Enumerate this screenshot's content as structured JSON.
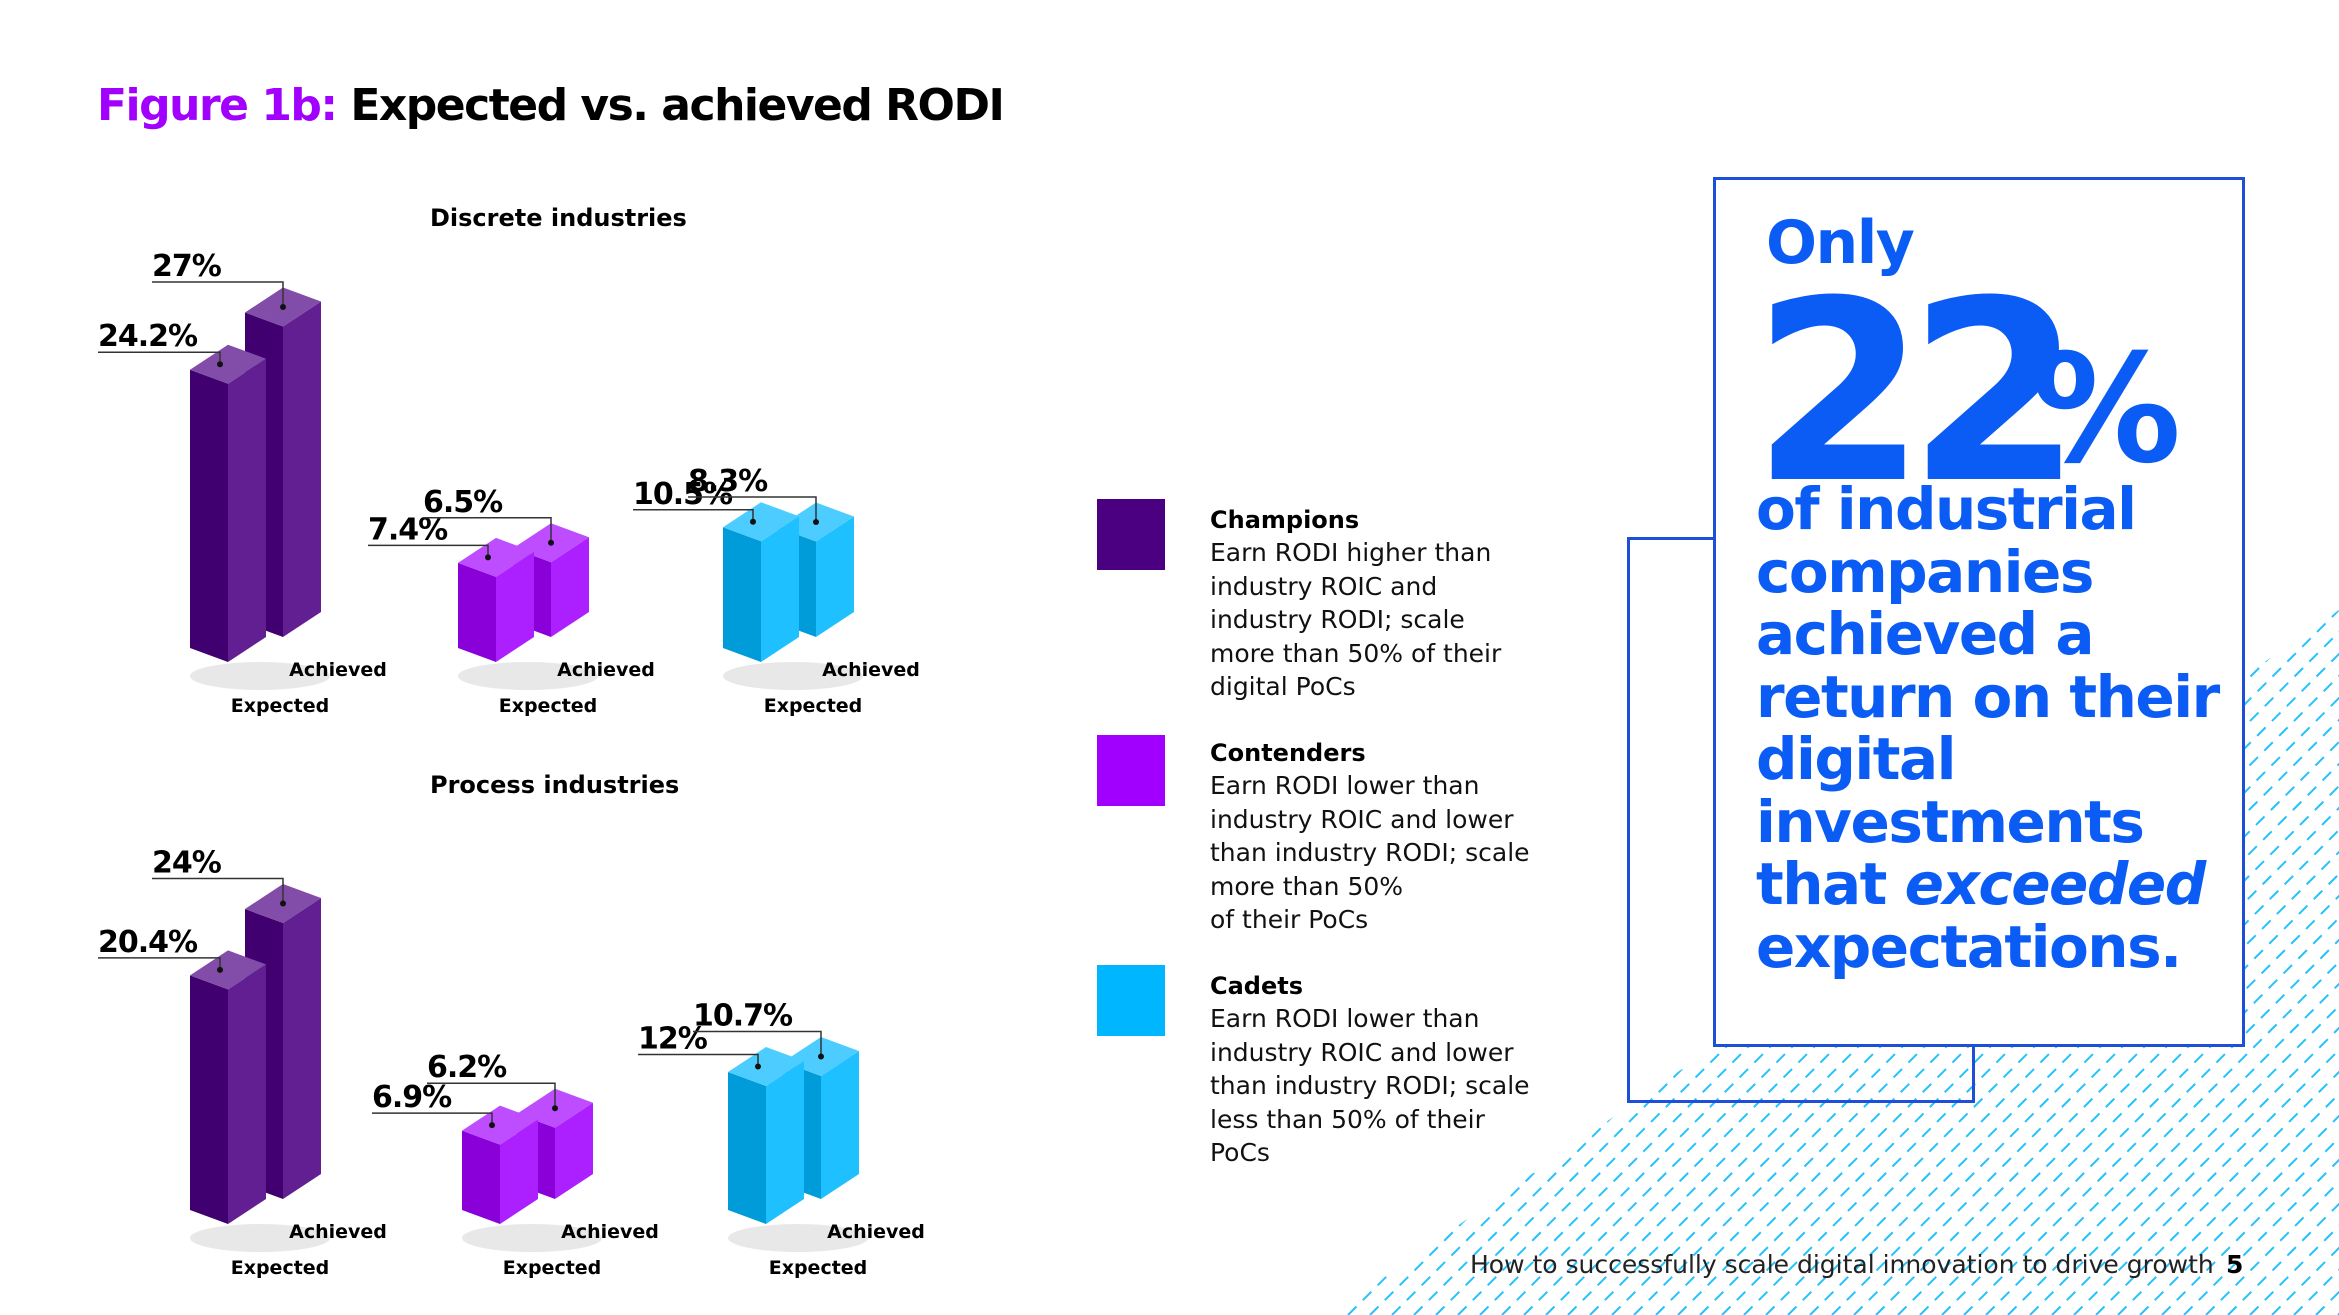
{
  "title": {
    "figure_label": "Figure 1b:",
    "text": "Expected vs. achieved RODI"
  },
  "colors": {
    "champions": "#4b0082",
    "contenders": "#a100ff",
    "cadets": "#00b7ff",
    "accent_blue": "#0b5cf5",
    "pattern": "#00b7ff"
  },
  "chart_data": [
    {
      "type": "bar",
      "title": "Discrete industries",
      "categories": [
        "Champions",
        "Contenders",
        "Cadets"
      ],
      "bar_labels": [
        "Expected",
        "Achieved"
      ],
      "series": [
        {
          "name": "Expected",
          "values": [
            24.2,
            7.4,
            10.5
          ]
        },
        {
          "name": "Achieved",
          "values": [
            27,
            6.5,
            8.3
          ]
        }
      ],
      "value_labels": {
        "Expected": [
          "24.2%",
          "7.4%",
          "10.5%"
        ],
        "Achieved": [
          "27%",
          "6.5%",
          "8.3%"
        ]
      },
      "ylim": [
        0,
        30
      ]
    },
    {
      "type": "bar",
      "title": "Process industries",
      "categories": [
        "Champions",
        "Contenders",
        "Cadets"
      ],
      "bar_labels": [
        "Expected",
        "Achieved"
      ],
      "series": [
        {
          "name": "Expected",
          "values": [
            20.4,
            6.9,
            12
          ]
        },
        {
          "name": "Achieved",
          "values": [
            24,
            6.2,
            10.7
          ]
        }
      ],
      "value_labels": {
        "Expected": [
          "20.4%",
          "6.9%",
          "12%"
        ],
        "Achieved": [
          "24%",
          "6.2%",
          "10.7%"
        ]
      },
      "ylim": [
        0,
        30
      ]
    }
  ],
  "legend": [
    {
      "name": "Champions",
      "desc_lines": [
        "Earn RODI higher than",
        "industry ROIC and",
        "industry RODI; scale",
        "more than 50% of their",
        "digital PoCs"
      ]
    },
    {
      "name": "Contenders",
      "desc_lines": [
        "Earn RODI lower than",
        "industry ROIC and lower",
        "than industry RODI; scale",
        "more than 50%",
        "of their PoCs"
      ]
    },
    {
      "name": "Cadets",
      "desc_lines": [
        "Earn RODI lower than",
        "industry ROIC and lower",
        "than industry RODI; scale",
        "less than 50% of their",
        "PoCs"
      ]
    }
  ],
  "callout": {
    "only": "Only",
    "big_number": "22",
    "percent": "%",
    "line1": "of industrial",
    "line2": "companies",
    "line3": "achieved a",
    "line4": "return on their",
    "line5": "digital",
    "line6": "investments",
    "line7_pre": "that ",
    "line7_em": "exceeded",
    "line8": "expectations."
  },
  "footer": {
    "text": "How to successfully scale digital innovation to drive growth",
    "page": "5"
  }
}
